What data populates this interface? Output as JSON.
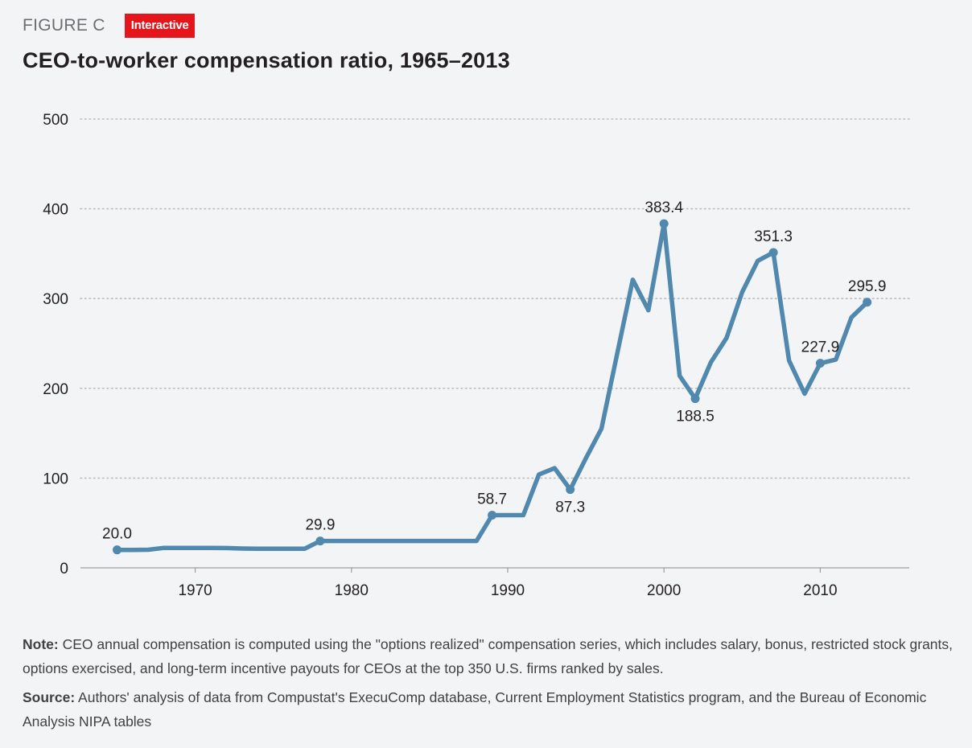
{
  "header": {
    "figure_label": "FIGURE C",
    "badge": "Interactive",
    "title": "CEO-to-worker compensation ratio, 1965–2013"
  },
  "colors": {
    "line": "#5089ad",
    "grid": "#b9bcc0",
    "badge": "#e4161b",
    "background": "#f3f4f6"
  },
  "chart_data": {
    "type": "line",
    "title": "CEO-to-worker compensation ratio, 1965–2013",
    "xlabel": "",
    "ylabel": "",
    "xlim": [
      1962,
      2015
    ],
    "ylim": [
      0,
      500
    ],
    "yticks": [
      0,
      100,
      200,
      300,
      400,
      500
    ],
    "xticks": [
      1970,
      1980,
      1990,
      2000,
      2010
    ],
    "grid": true,
    "series": [
      {
        "x": [
          1965,
          1966,
          1967,
          1968,
          1969,
          1970,
          1971,
          1972,
          1973,
          1974,
          1975,
          1976,
          1977,
          1978,
          1979,
          1980,
          1981,
          1982,
          1983,
          1984,
          1985,
          1986,
          1987,
          1988,
          1989,
          1990,
          1991,
          1992,
          1993,
          1994,
          1995,
          1996,
          1997,
          1998,
          1999,
          2000,
          2001,
          2002,
          2003,
          2004,
          2005,
          2006,
          2007,
          2008,
          2009,
          2010,
          2011,
          2012,
          2013
        ],
        "values": [
          20.0,
          20.0,
          20.2,
          22.2,
          22.2,
          22.2,
          22.2,
          22.0,
          21.5,
          21.2,
          21.2,
          21.2,
          21.2,
          29.9,
          29.9,
          29.9,
          29.9,
          29.9,
          29.9,
          29.9,
          29.9,
          29.9,
          29.9,
          29.9,
          58.7,
          58.7,
          58.7,
          104,
          111,
          87.3,
          122,
          155,
          238,
          321,
          287,
          383.4,
          214,
          188.5,
          229,
          256,
          307,
          342,
          351.3,
          231,
          194,
          227.9,
          232,
          279,
          295.9
        ]
      }
    ],
    "annotations": [
      {
        "x": 1965,
        "y": 20.0,
        "label": "20.0",
        "pos": "above"
      },
      {
        "x": 1978,
        "y": 29.9,
        "label": "29.9",
        "pos": "above"
      },
      {
        "x": 1989,
        "y": 58.7,
        "label": "58.7",
        "pos": "above"
      },
      {
        "x": 1994,
        "y": 87.3,
        "label": "87.3",
        "pos": "below"
      },
      {
        "x": 2000,
        "y": 383.4,
        "label": "383.4",
        "pos": "above"
      },
      {
        "x": 2002,
        "y": 188.5,
        "label": "188.5",
        "pos": "below"
      },
      {
        "x": 2007,
        "y": 351.3,
        "label": "351.3",
        "pos": "above"
      },
      {
        "x": 2010,
        "y": 227.9,
        "label": "227.9",
        "pos": "above"
      },
      {
        "x": 2013,
        "y": 295.9,
        "label": "295.9",
        "pos": "above"
      }
    ]
  },
  "footer": {
    "note_label": "Note:",
    "note_text": " CEO annual compensation is computed using the \"options realized\" compensation series, which includes salary, bonus, restricted stock grants, options exercised, and long-term incentive payouts for CEOs at the top 350 U.S. firms ranked by sales.",
    "source_label": "Source:",
    "source_text": " Authors' analysis of data from Compustat's ExecuComp database, Current Employment Statistics program, and the Bureau of Economic Analysis NIPA tables"
  }
}
